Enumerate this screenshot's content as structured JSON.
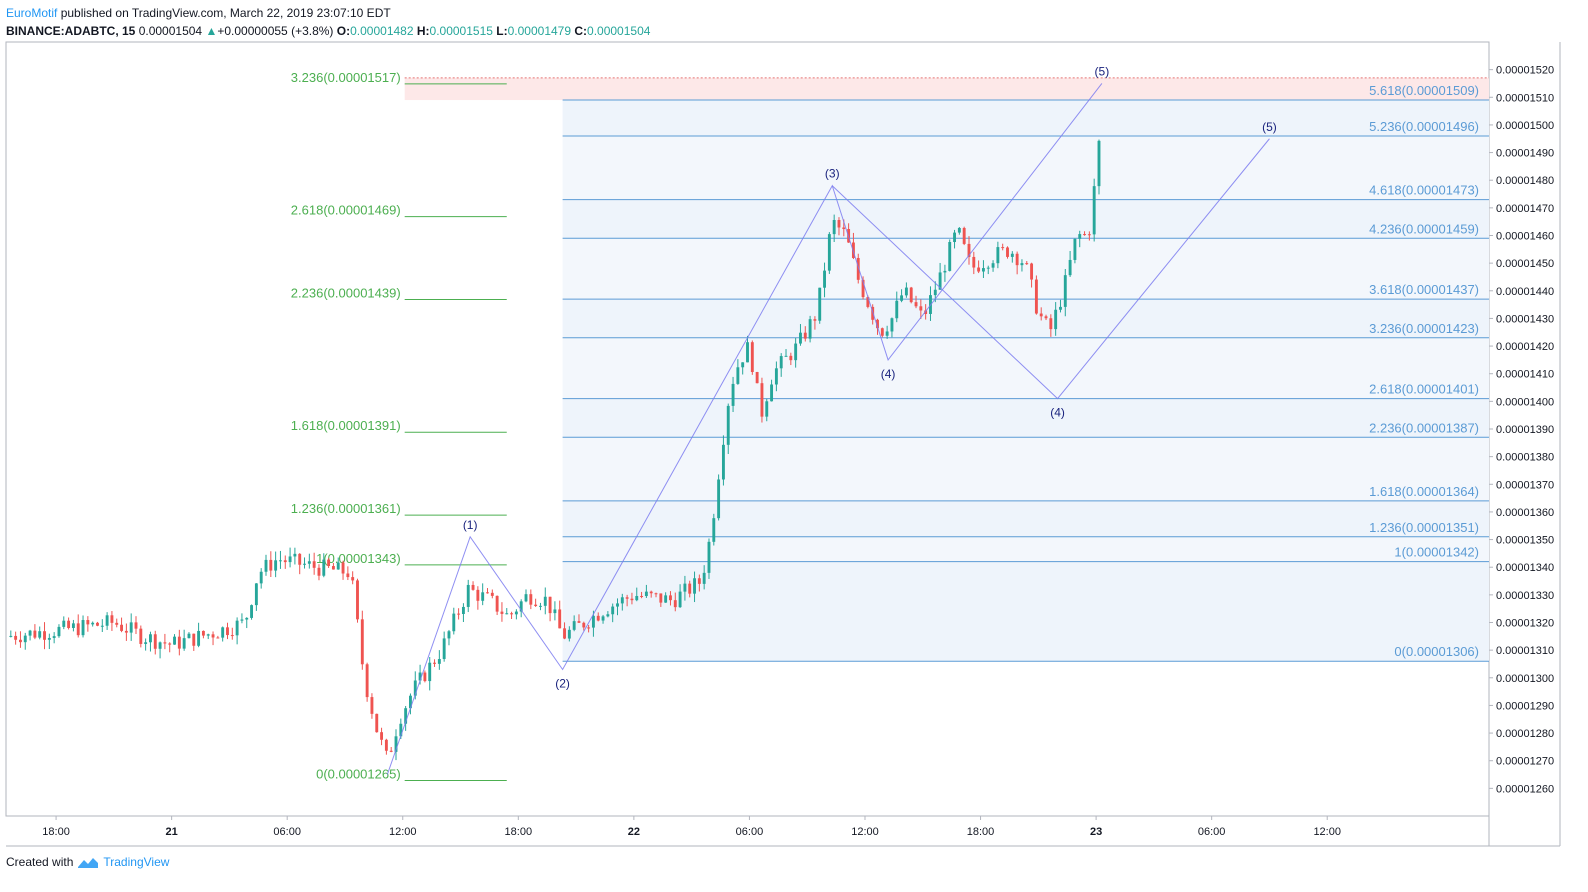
{
  "header": {
    "author": "EuroMotif",
    "published_text": "published on TradingView.com, March 22, 2019 23:07:10 EDT",
    "symbol": "BINANCE:ADABTC, 15",
    "price": "0.00001504",
    "change_arrow": "▲",
    "change": "+0.00000055 (+3.8%)",
    "o_label": "O:",
    "o": "0.00001482",
    "h_label": "H:",
    "h": "0.00001515",
    "l_label": "L:",
    "l": "0.00001479",
    "c_label": "C:",
    "c": "0.00001504"
  },
  "footer": {
    "created_with": "Created with",
    "brand": "TradingView"
  },
  "colors": {
    "up": "#26a69a",
    "down": "#ef5350",
    "fib_left": "#4caf50",
    "fib_right": "#5b9bd5",
    "elliott": "#7b7bf0",
    "label_blue": "#1a237e",
    "target_zone": "#fde8e8"
  },
  "chart_data": {
    "type": "candlestick",
    "ylim": [
      1.25e-05,
      1.53e-05
    ],
    "y_ticks": [
      "0.00001260",
      "0.00001270",
      "0.00001280",
      "0.00001290",
      "0.00001300",
      "0.00001310",
      "0.00001320",
      "0.00001330",
      "0.00001340",
      "0.00001350",
      "0.00001360",
      "0.00001370",
      "0.00001380",
      "0.00001390",
      "0.00001400",
      "0.00001410",
      "0.00001420",
      "0.00001430",
      "0.00001440",
      "0.00001450",
      "0.00001460",
      "0.00001470",
      "0.00001480",
      "0.00001490",
      "0.00001500",
      "0.00001510",
      "0.00001520"
    ],
    "x_range_hours": [
      -8.6,
      68.4
    ],
    "x_ticks": [
      {
        "label": "18:00",
        "t": -6
      },
      {
        "label": "21",
        "t": 0
      },
      {
        "label": "06:00",
        "t": 6
      },
      {
        "label": "12:00",
        "t": 12
      },
      {
        "label": "18:00",
        "t": 18
      },
      {
        "label": "22",
        "t": 24
      },
      {
        "label": "06:00",
        "t": 30
      },
      {
        "label": "12:00",
        "t": 36
      },
      {
        "label": "18:00",
        "t": 42
      },
      {
        "label": "23",
        "t": 48
      },
      {
        "label": "06:00",
        "t": 54
      },
      {
        "label": "12:00",
        "t": 60
      }
    ],
    "price_path": [
      {
        "t": -8.6,
        "p": 1.315e-05
      },
      {
        "t": -5,
        "p": 1.318e-05
      },
      {
        "t": -3,
        "p": 1.32e-05
      },
      {
        "t": -1.5,
        "p": 1.315e-05
      },
      {
        "t": 0,
        "p": 1.312e-05
      },
      {
        "t": 2,
        "p": 1.316e-05
      },
      {
        "t": 3.8,
        "p": 1.32e-05
      },
      {
        "t": 4.5,
        "p": 1.338e-05
      },
      {
        "t": 5.5,
        "p": 1.343e-05
      },
      {
        "t": 7.5,
        "p": 1.34e-05
      },
      {
        "t": 9.3,
        "p": 1.338e-05
      },
      {
        "t": 10,
        "p": 1.3e-05
      },
      {
        "t": 10.7,
        "p": 1.28e-05
      },
      {
        "t": 11.2,
        "p": 1.27e-05
      },
      {
        "t": 11.8,
        "p": 1.285e-05
      },
      {
        "t": 12.5,
        "p": 1.295e-05
      },
      {
        "t": 14,
        "p": 1.31e-05
      },
      {
        "t": 15.4,
        "p": 1.332e-05
      },
      {
        "t": 16.5,
        "p": 1.328e-05
      },
      {
        "t": 17.5,
        "p": 1.322e-05
      },
      {
        "t": 18.5,
        "p": 1.33e-05
      },
      {
        "t": 19.5,
        "p": 1.328e-05
      },
      {
        "t": 20.3,
        "p": 1.315e-05
      },
      {
        "t": 21,
        "p": 1.318e-05
      },
      {
        "t": 22.5,
        "p": 1.325e-05
      },
      {
        "t": 24,
        "p": 1.33e-05
      },
      {
        "t": 26,
        "p": 1.328e-05
      },
      {
        "t": 27.5,
        "p": 1.335e-05
      },
      {
        "t": 28,
        "p": 1.352e-05
      },
      {
        "t": 28.5,
        "p": 1.38e-05
      },
      {
        "t": 29,
        "p": 1.405e-05
      },
      {
        "t": 29.5,
        "p": 1.415e-05
      },
      {
        "t": 30,
        "p": 1.42e-05
      },
      {
        "t": 30.6,
        "p": 1.395e-05
      },
      {
        "t": 31.2,
        "p": 1.41e-05
      },
      {
        "t": 32.5,
        "p": 1.42e-05
      },
      {
        "t": 33.5,
        "p": 1.432e-05
      },
      {
        "t": 34.3,
        "p": 1.465e-05
      },
      {
        "t": 35,
        "p": 1.46e-05
      },
      {
        "t": 35.6,
        "p": 1.445e-05
      },
      {
        "t": 36.2,
        "p": 1.435e-05
      },
      {
        "t": 36.8,
        "p": 1.425e-05
      },
      {
        "t": 37.4,
        "p": 1.43e-05
      },
      {
        "t": 38,
        "p": 1.44e-05
      },
      {
        "t": 39,
        "p": 1.43e-05
      },
      {
        "t": 40,
        "p": 1.447e-05
      },
      {
        "t": 40.8,
        "p": 1.462e-05
      },
      {
        "t": 41.5,
        "p": 1.448e-05
      },
      {
        "t": 42.5,
        "p": 1.452e-05
      },
      {
        "t": 43.5,
        "p": 1.455e-05
      },
      {
        "t": 44.3,
        "p": 1.45e-05
      },
      {
        "t": 45,
        "p": 1.432e-05
      },
      {
        "t": 45.6,
        "p": 1.425e-05
      },
      {
        "t": 46.3,
        "p": 1.44e-05
      },
      {
        "t": 47,
        "p": 1.46e-05
      },
      {
        "t": 47.6,
        "p": 1.46e-05
      },
      {
        "t": 48,
        "p": 1.482e-05
      },
      {
        "t": 48.3,
        "p": 1.504e-05
      }
    ],
    "fib_left": {
      "levels": [
        {
          "label": "3.236(0.00001517)",
          "value": 1.517e-05
        },
        {
          "label": "2.618(0.00001469)",
          "value": 1.469e-05
        },
        {
          "label": "2.236(0.00001439)",
          "value": 1.439e-05
        },
        {
          "label": "1.618(0.00001391)",
          "value": 1.391e-05
        },
        {
          "label": "1.236(0.00001361)",
          "value": 1.361e-05
        },
        {
          "label": "1(0.00001343)",
          "value": 1.343e-05
        },
        {
          "label": "0(0.00001265)",
          "value": 1.265e-05
        }
      ],
      "t_start": 12.1,
      "t_end": 17.4
    },
    "fib_right": {
      "levels": [
        {
          "label": "5.618(0.00001509)",
          "value": 1.509e-05
        },
        {
          "label": "5.236(0.00001496)",
          "value": 1.496e-05
        },
        {
          "label": "4.618(0.00001473)",
          "value": 1.473e-05
        },
        {
          "label": "4.236(0.00001459)",
          "value": 1.459e-05
        },
        {
          "label": "3.618(0.00001437)",
          "value": 1.437e-05
        },
        {
          "label": "3.236(0.00001423)",
          "value": 1.423e-05
        },
        {
          "label": "2.618(0.00001401)",
          "value": 1.401e-05
        },
        {
          "label": "2.236(0.00001387)",
          "value": 1.387e-05
        },
        {
          "label": "1.618(0.00001364)",
          "value": 1.364e-05
        },
        {
          "label": "1.236(0.00001351)",
          "value": 1.351e-05
        },
        {
          "label": "1(0.00001342)",
          "value": 1.342e-05
        },
        {
          "label": "0(0.00001306)",
          "value": 1.306e-05
        }
      ],
      "t_start": 20.3,
      "t_end": 68.4
    },
    "target_zone": {
      "top": 1.517e-05,
      "bottom": 1.509e-05,
      "t_start": 12.1,
      "t_end": 68.4
    },
    "elliott_primary": [
      {
        "label": "",
        "t": 11.2,
        "p": 1.265e-05
      },
      {
        "label": "(1)",
        "t": 15.5,
        "p": 1.351e-05
      },
      {
        "label": "(2)",
        "t": 20.3,
        "p": 1.303e-05
      },
      {
        "label": "(3)",
        "t": 34.3,
        "p": 1.478e-05
      },
      {
        "label": "(4)",
        "t": 37.2,
        "p": 1.415e-05
      },
      {
        "label": "(5)",
        "t": 48.3,
        "p": 1.515e-05
      }
    ],
    "elliott_projection": [
      {
        "label": "",
        "t": 34.3,
        "p": 1.478e-05
      },
      {
        "label": "(4)",
        "t": 46.0,
        "p": 1.401e-05
      },
      {
        "label": "(5)",
        "t": 57.0,
        "p": 1.495e-05
      }
    ]
  }
}
